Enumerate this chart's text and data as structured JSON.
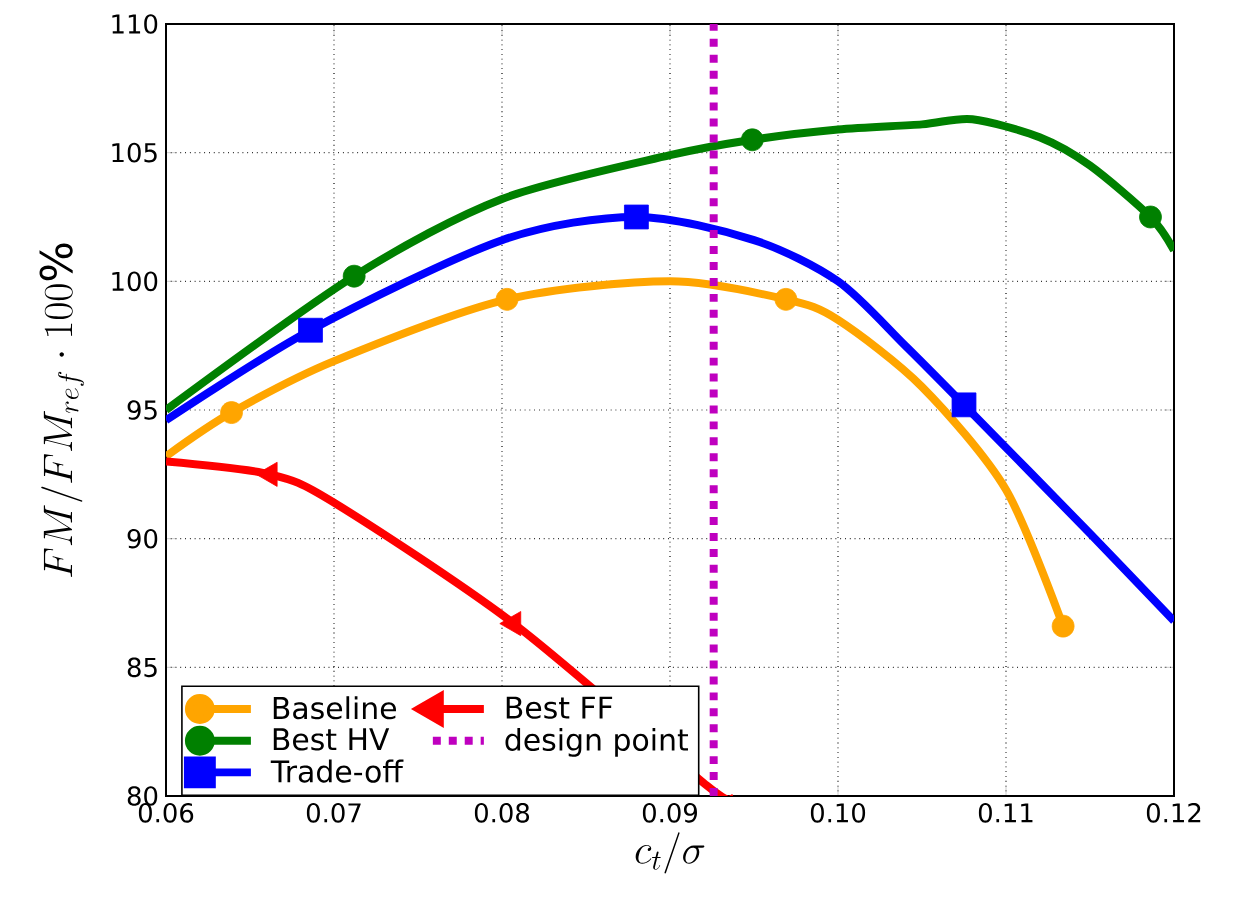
{
  "chart_data": {
    "type": "line",
    "xlabel": "c_t/\\sigma",
    "ylabel": "FM/FM_{ref}\\cdot 100\\%",
    "xlim": [
      0.06,
      0.12
    ],
    "ylim": [
      80,
      110
    ],
    "xticks": [
      0.06,
      0.07,
      0.08,
      0.09,
      {
        "value": 0.1,
        "label": "0.10"
      },
      0.11,
      0.12
    ],
    "yticks": [
      80,
      85,
      90,
      95,
      100,
      105,
      110
    ],
    "grid": true,
    "legend": "bottom left",
    "line_style": "solid",
    "series": [
      {
        "name": "Baseline",
        "color": "#ffa500",
        "x": [
          0.06,
          0.0639,
          0.07,
          0.0803,
          0.09,
          0.0969,
          0.1,
          0.105,
          0.11,
          0.1134
        ],
        "values": [
          93.2,
          94.9,
          96.9,
          99.3,
          100.0,
          99.3,
          98.5,
          95.9,
          91.9,
          86.6
        ]
      },
      {
        "name": "Best HV",
        "color": "#008000",
        "x": [
          0.06,
          0.0712,
          0.08,
          0.09,
          0.0949,
          0.1,
          0.105,
          0.108,
          0.112,
          0.115,
          0.1186,
          0.12
        ],
        "values": [
          95.0,
          100.2,
          103.2,
          104.9,
          105.5,
          105.9,
          106.1,
          106.3,
          105.6,
          104.5,
          102.5,
          101.2
        ]
      },
      {
        "name": "Trade-off",
        "color": "#0000ff",
        "x": [
          0.06,
          0.0686,
          0.08,
          0.088,
          0.095,
          0.1,
          0.104,
          0.1075,
          0.115,
          0.12
        ],
        "values": [
          94.6,
          98.1,
          101.6,
          102.5,
          101.6,
          100.0,
          97.5,
          95.2,
          90.2,
          86.8
        ]
      },
      {
        "name": "Best FF",
        "color": "#ff0000",
        "x": [
          0.06,
          0.0662,
          0.07,
          0.0807,
          0.0922,
          0.0935
        ],
        "values": [
          93.0,
          92.5,
          91.4,
          86.7,
          80.4,
          80.0
        ]
      },
      {
        "type": "scatter",
        "color": "#ffa500",
        "marker": "circle",
        "x": [
          0.0639,
          0.0803,
          0.0969,
          0.1134
        ],
        "values": [
          94.9,
          99.3,
          99.3,
          86.6
        ]
      },
      {
        "type": "scatter",
        "color": "#008000",
        "marker": "circle",
        "x": [
          0.0712,
          0.0949,
          0.1186
        ],
        "values": [
          100.2,
          105.5,
          102.5
        ]
      },
      {
        "type": "scatter",
        "color": "#0000ff",
        "marker": "square",
        "x": [
          0.0686,
          0.088,
          0.1075
        ],
        "values": [
          98.1,
          102.5,
          95.2
        ]
      },
      {
        "type": "scatter",
        "color": "#ff0000",
        "marker": "triangle",
        "x": [
          0.0662,
          0.0807
        ],
        "values": [
          92.5,
          86.7
        ]
      }
    ],
    "ref_lines": [
      {
        "axis": "x",
        "value": 0.0926,
        "label": "design point",
        "color": "#bf00bf",
        "line_style": "dotted"
      }
    ]
  }
}
